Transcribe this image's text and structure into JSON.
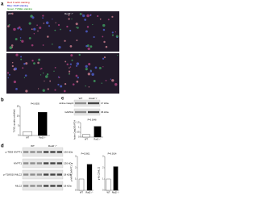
{
  "panel_a": {
    "label": "a",
    "legend": [
      "Red: F-actin staining",
      "Blue: DAPI staining",
      "Green: TUNEL staining"
    ],
    "images": [
      "WT",
      "Rod2⁻/⁻"
    ]
  },
  "blots": [
    {
      "panel": "c",
      "rows": [
        {
          "name": "Active Casp3",
          "size": "17 kDa"
        },
        {
          "name": "GAPDH",
          "size": "36 kDa"
        }
      ],
      "lanes": [
        "WT",
        "Rod2⁻/⁻"
      ]
    },
    {
      "panel": "d",
      "rows": [
        {
          "name": "p-T853 MYPT1",
          "size": "130 kDa"
        },
        {
          "name": "MYPT1",
          "size": "130 kDa"
        },
        {
          "name": "p-T18/S19 MLC2",
          "size": "18 kDa"
        },
        {
          "name": "MLC2",
          "size": "18 kDa"
        }
      ],
      "lanes": [
        "WT",
        "Rod2⁻/⁻"
      ]
    }
  ],
  "chart_data": [
    {
      "type": "bar",
      "panel": "b",
      "ylabel": "TUNEL-positive cells/field",
      "annotation": "P=0.0005",
      "categories": [
        "WT",
        "Rod2⁻/⁻"
      ],
      "values": [
        2,
        12
      ],
      "colors": [
        "#ffffff",
        "#000000"
      ],
      "ylim": [
        0,
        15
      ],
      "yticks": [
        0,
        5,
        10,
        15
      ]
    },
    {
      "type": "bar",
      "ylabel": "Active Casp3/GAPDH",
      "annotation": "P=0.0048",
      "categories": [
        "WT",
        "Rod2⁻/⁻"
      ],
      "values": [
        0.3,
        1.1
      ],
      "colors": [
        "#ffffff",
        "#000000"
      ],
      "ylim": [
        0,
        1.5
      ],
      "yticks": [
        0,
        0.5,
        1,
        1.5
      ]
    },
    {
      "type": "bar",
      "ylabel": "p-MYPT1/MYPT1",
      "annotation": "P=0.0001",
      "categories": [
        "WT",
        "Rod2⁻/⁻"
      ],
      "values": [
        1,
        2.3
      ],
      "colors": [
        "#ffffff",
        "#000000"
      ],
      "ylim": [
        0,
        3
      ],
      "yticks": [
        0,
        1,
        2,
        3
      ]
    },
    {
      "type": "bar",
      "ylabel": "p-MLC2/MLC2",
      "annotation": "P=0.0014",
      "categories": [
        "WT",
        "Rod2⁻/⁻"
      ],
      "values": [
        1,
        2.1
      ],
      "colors": [
        "#ffffff",
        "#000000"
      ],
      "ylim": [
        0,
        3
      ],
      "yticks": [
        0,
        1,
        2,
        3
      ]
    }
  ]
}
